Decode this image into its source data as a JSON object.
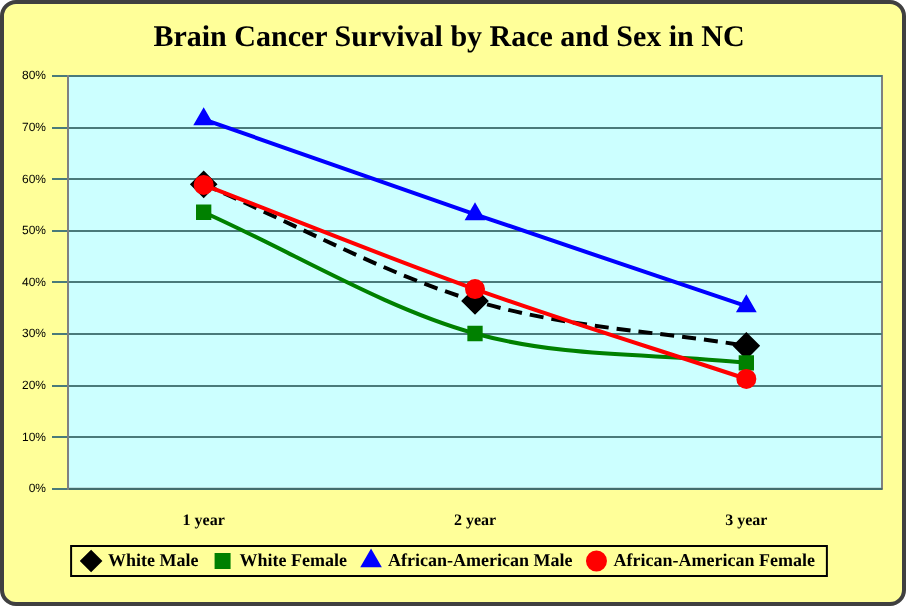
{
  "chart_data": {
    "type": "line",
    "title": "Brain Cancer Survival by Race and Sex in NC",
    "categories": [
      "1 year",
      "2 year",
      "3 year"
    ],
    "series": [
      {
        "name": "White Male",
        "color": "#000000",
        "values": [
          59,
          36.4,
          27.7
        ],
        "marker": "diamond",
        "line_style": "dashed"
      },
      {
        "name": "White Female",
        "color": "#008000",
        "values": [
          53.6,
          30.1,
          24.4
        ],
        "marker": "square",
        "line_style": "solid"
      },
      {
        "name": "African-American Male",
        "color": "#0000ff",
        "values": [
          71.6,
          53.2,
          35.4
        ],
        "marker": "triangle",
        "line_style": "solid"
      },
      {
        "name": "African-American Female",
        "color": "#ff0000",
        "values": [
          58.9,
          38.7,
          21.3
        ],
        "marker": "circle",
        "line_style": "solid"
      }
    ],
    "ylim": [
      0,
      80
    ],
    "yticks": [
      {
        "value": 0,
        "label": "0%"
      },
      {
        "value": 10,
        "label": "10%"
      },
      {
        "value": 20,
        "label": "20%"
      },
      {
        "value": 30,
        "label": "30%"
      },
      {
        "value": 40,
        "label": "40%"
      },
      {
        "value": 50,
        "label": "50%"
      },
      {
        "value": 60,
        "label": "60%"
      },
      {
        "value": 70,
        "label": "70%"
      },
      {
        "value": 80,
        "label": "80%"
      }
    ],
    "grid": "y",
    "legend": "bottom"
  }
}
